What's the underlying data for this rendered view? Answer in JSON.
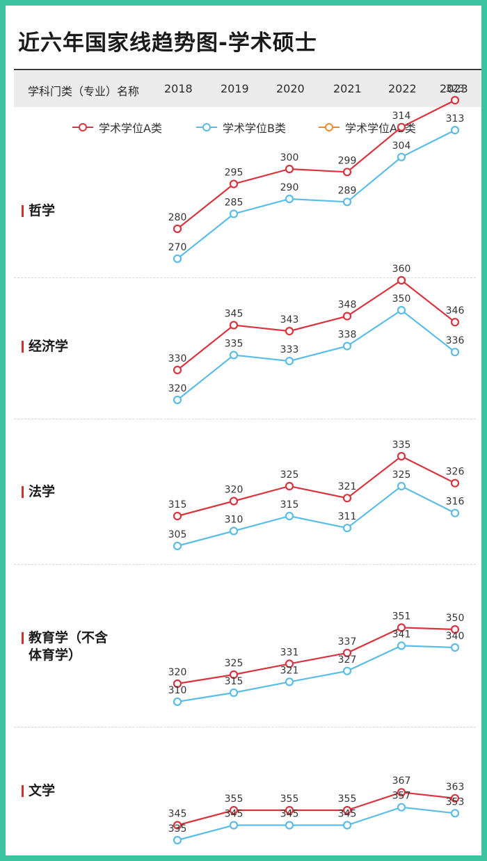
{
  "title": "近六年国家线趋势图-学术硕士",
  "header": {
    "category_label": "学科门类（专业）名称",
    "years": [
      "2018",
      "2019",
      "2020",
      "2021",
      "2022",
      "2023"
    ]
  },
  "legend": [
    {
      "name": "学术学位A类",
      "color": "#d9343e"
    },
    {
      "name": "学术学位B类",
      "color": "#5bbde6"
    },
    {
      "name": "学术学位AB类",
      "color": "#f08a2c"
    }
  ],
  "chart_data": [
    {
      "type": "line",
      "category": "哲学",
      "x": [
        "2018",
        "2019",
        "2020",
        "2021",
        "2022",
        "2023"
      ],
      "series": [
        {
          "name": "学术学位A类",
          "values": [
            280,
            295,
            300,
            299,
            314,
            323
          ]
        },
        {
          "name": "学术学位B类",
          "values": [
            270,
            285,
            290,
            289,
            304,
            313
          ]
        }
      ]
    },
    {
      "type": "line",
      "category": "经济学",
      "x": [
        "2018",
        "2019",
        "2020",
        "2021",
        "2022",
        "2023"
      ],
      "series": [
        {
          "name": "学术学位A类",
          "values": [
            330,
            345,
            343,
            348,
            360,
            346
          ]
        },
        {
          "name": "学术学位B类",
          "values": [
            320,
            335,
            333,
            338,
            350,
            336
          ]
        }
      ]
    },
    {
      "type": "line",
      "category": "法学",
      "x": [
        "2018",
        "2019",
        "2020",
        "2021",
        "2022",
        "2023"
      ],
      "series": [
        {
          "name": "学术学位A类",
          "values": [
            315,
            320,
            325,
            321,
            335,
            326
          ]
        },
        {
          "name": "学术学位B类",
          "values": [
            305,
            310,
            315,
            311,
            325,
            316
          ]
        }
      ]
    },
    {
      "type": "line",
      "category": "教育学（不含体育学）",
      "x": [
        "2018",
        "2019",
        "2020",
        "2021",
        "2022",
        "2023"
      ],
      "series": [
        {
          "name": "学术学位A类",
          "values": [
            320,
            325,
            331,
            337,
            351,
            350
          ]
        },
        {
          "name": "学术学位B类",
          "values": [
            310,
            315,
            321,
            327,
            341,
            340
          ]
        }
      ]
    },
    {
      "type": "line",
      "category": "文学",
      "x": [
        "2018",
        "2019",
        "2020",
        "2021",
        "2022",
        "2023"
      ],
      "series": [
        {
          "name": "学术学位A类",
          "values": [
            345,
            355,
            355,
            355,
            367,
            363
          ]
        },
        {
          "name": "学术学位B类",
          "values": [
            335,
            345,
            345,
            345,
            357,
            353
          ]
        }
      ]
    }
  ]
}
